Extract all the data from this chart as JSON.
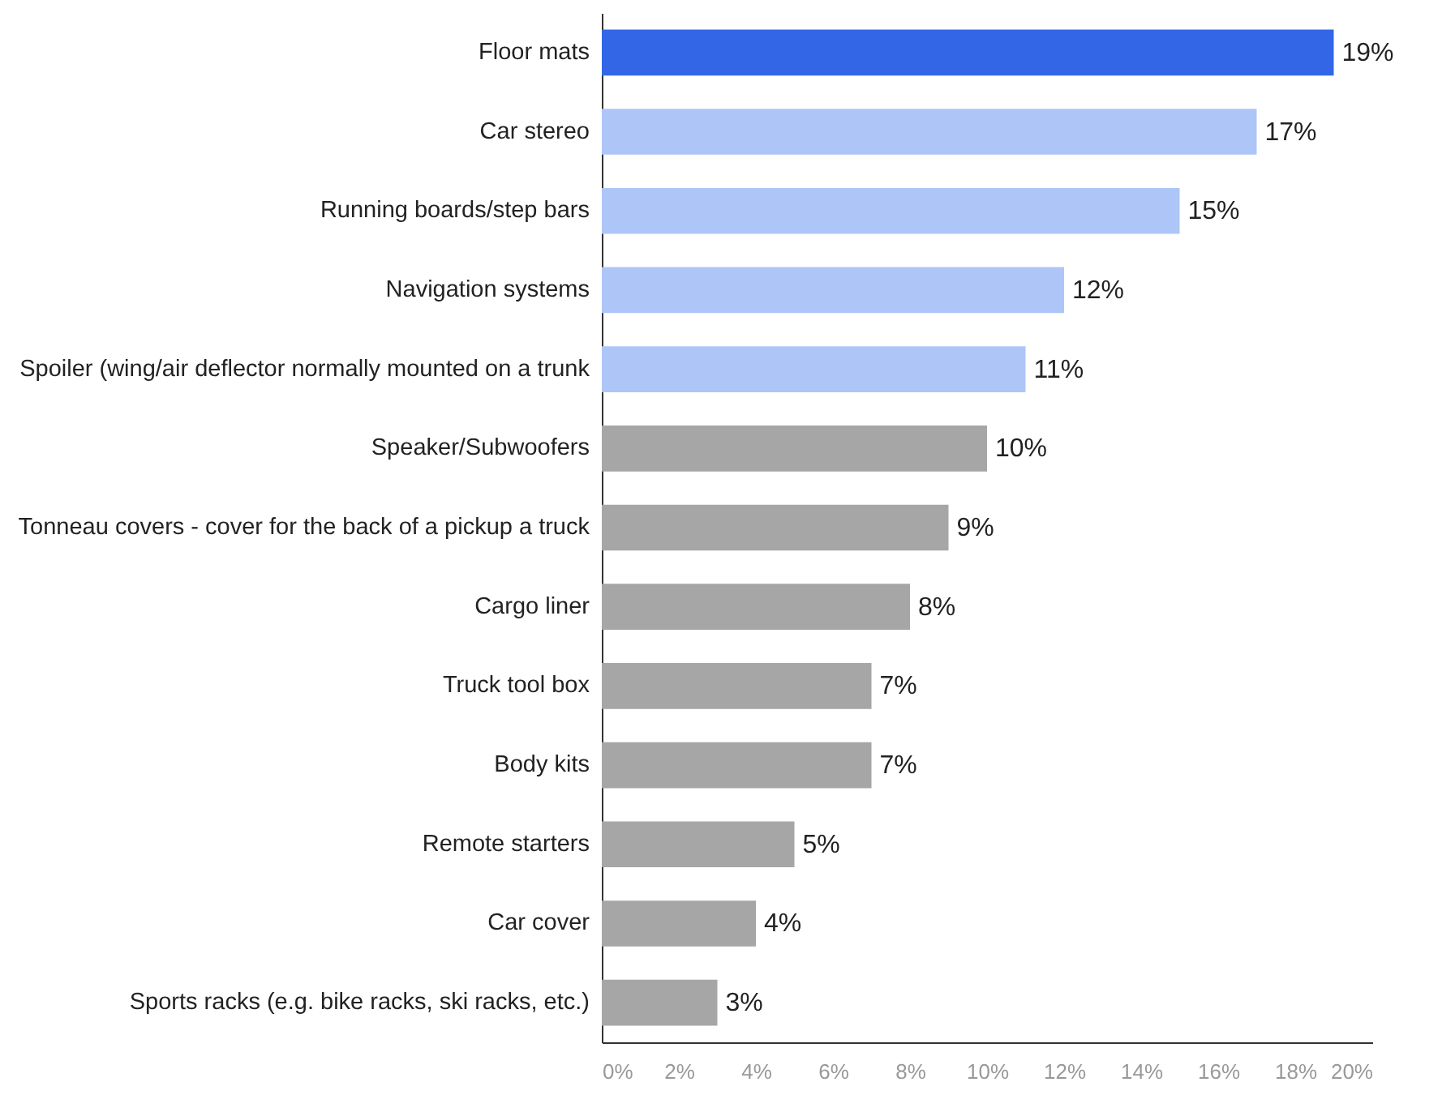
{
  "chart_data": {
    "type": "bar",
    "orientation": "horizontal",
    "categories": [
      "Floor mats",
      "Car stereo",
      "Running boards/step bars",
      "Navigation systems",
      "Spoiler (wing/air deflector normally mounted on a trunk",
      "Speaker/Subwoofers",
      "Tonneau covers - cover for the back of a pickup a truck",
      "Cargo liner",
      "Truck tool box",
      "Body kits",
      "Remote starters",
      "Car cover",
      "Sports racks (e.g. bike racks, ski racks, etc.)"
    ],
    "values": [
      19,
      17,
      15,
      12,
      11,
      10,
      9,
      8,
      7,
      7,
      5,
      4,
      3
    ],
    "colors": [
      "#3366e6",
      "#aec6f7",
      "#aec6f7",
      "#aec6f7",
      "#aec6f7",
      "#a6a6a6",
      "#a6a6a6",
      "#a6a6a6",
      "#a6a6a6",
      "#a6a6a6",
      "#a6a6a6",
      "#a6a6a6",
      "#a6a6a6"
    ],
    "value_labels": [
      "19%",
      "17%",
      "15%",
      "12%",
      "11%",
      "10%",
      "9%",
      "8%",
      "7%",
      "7%",
      "5%",
      "4%",
      "3%"
    ],
    "xlim": [
      0,
      20
    ],
    "xticks": [
      {
        "value": 0,
        "label": "0%"
      },
      {
        "value": 2,
        "label": "2%"
      },
      {
        "value": 4,
        "label": "4%"
      },
      {
        "value": 6,
        "label": "6%"
      },
      {
        "value": 8,
        "label": "8%"
      },
      {
        "value": 10,
        "label": "10%"
      },
      {
        "value": 12,
        "label": "12%"
      },
      {
        "value": 14,
        "label": "14%"
      },
      {
        "value": 16,
        "label": "16%"
      },
      {
        "value": 18,
        "label": "18%"
      },
      {
        "value": 20,
        "label": "20%"
      }
    ],
    "grid": false
  }
}
